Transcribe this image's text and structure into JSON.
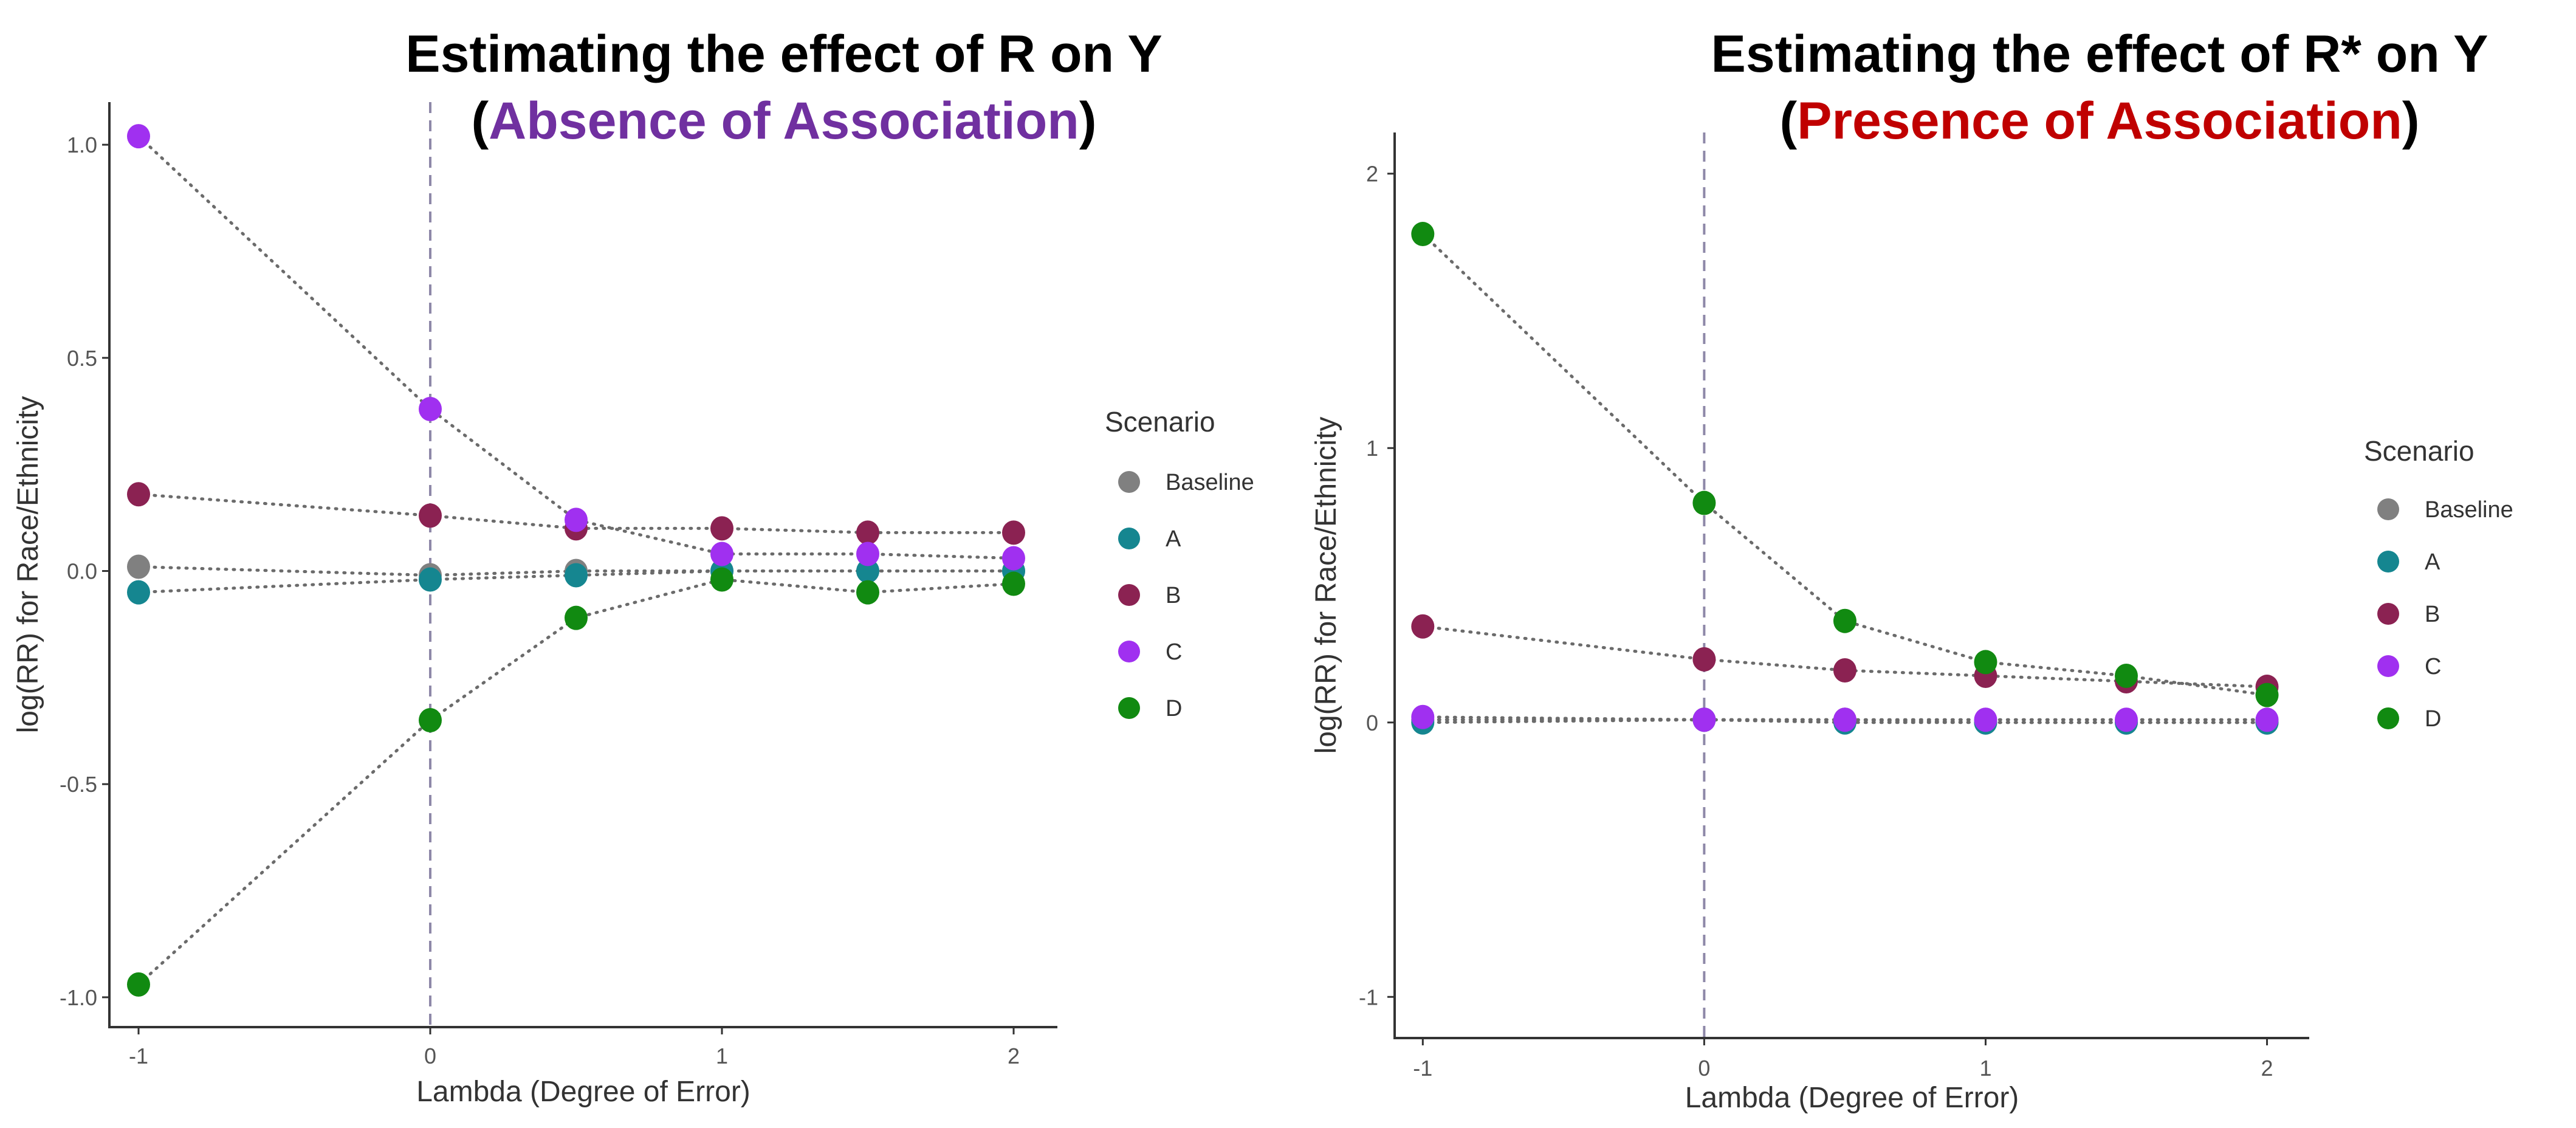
{
  "chart_data": [
    {
      "type": "scatter",
      "title_line1": "Estimating the effect of R on Y",
      "title_line2": {
        "open": "(",
        "highlight": "Absence of Association",
        "close": ")",
        "highlight_color": "#7030A0"
      },
      "xlabel": "Lambda (Degree of Error)",
      "ylabel": "log(RR) for Race/Ethnicity",
      "xlim": [
        -1.1,
        2.15
      ],
      "ylim": [
        -1.07,
        1.1
      ],
      "x_ticks": [
        -1,
        0,
        1,
        2
      ],
      "x_tick_labels": [
        "-1",
        "0",
        "1",
        "2"
      ],
      "y_ticks": [
        -1.0,
        -0.5,
        0.0,
        0.5,
        1.0
      ],
      "y_tick_labels": [
        "-1.0",
        "-0.5",
        "0.0",
        "0.5",
        "1.0"
      ],
      "reference_line_x": 0,
      "x": [
        -1,
        0,
        0.5,
        1,
        1.5,
        2
      ],
      "legend_title": "Scenario",
      "legend_position": "right",
      "grid": false,
      "series": [
        {
          "name": "Baseline",
          "color": "#808080",
          "values": [
            0.01,
            -0.01,
            0.0,
            0.0,
            0.0,
            0.0
          ]
        },
        {
          "name": "A",
          "color": "#158690",
          "values": [
            -0.05,
            -0.02,
            -0.01,
            0.0,
            0.0,
            0.0
          ]
        },
        {
          "name": "B",
          "color": "#8B2252",
          "values": [
            0.18,
            0.13,
            0.1,
            0.1,
            0.09,
            0.09
          ]
        },
        {
          "name": "C",
          "color": "#A030F0",
          "values": [
            1.02,
            0.38,
            0.12,
            0.04,
            0.04,
            0.03
          ]
        },
        {
          "name": "D",
          "color": "#118A11",
          "values": [
            -0.97,
            -0.35,
            -0.11,
            -0.02,
            -0.05,
            -0.03
          ]
        }
      ]
    },
    {
      "type": "scatter",
      "title_line1": "Estimating the effect of R* on Y",
      "title_line2": {
        "open": "(",
        "highlight": "Presence of Association",
        "close": ")",
        "highlight_color": "#C00000"
      },
      "xlabel": "Lambda (Degree of Error)",
      "ylabel": "log(RR) for Race/Ethnicity",
      "xlim": [
        -1.1,
        2.15
      ],
      "ylim": [
        -1.15,
        2.15
      ],
      "x_ticks": [
        -1,
        0,
        1,
        2
      ],
      "x_tick_labels": [
        "-1",
        "0",
        "1",
        "2"
      ],
      "y_ticks": [
        -1,
        0,
        1,
        2
      ],
      "y_tick_labels": [
        "-1",
        "0",
        "1",
        "2"
      ],
      "reference_line_x": 0,
      "x": [
        -1,
        0,
        0.5,
        1,
        1.5,
        2
      ],
      "legend_title": "Scenario",
      "legend_position": "right",
      "grid": false,
      "series": [
        {
          "name": "Baseline",
          "color": "#808080",
          "values": [
            0.01,
            0.01,
            0.01,
            0.0,
            0.0,
            0.0
          ]
        },
        {
          "name": "A",
          "color": "#158690",
          "values": [
            0.0,
            0.01,
            0.0,
            0.0,
            0.0,
            0.0
          ]
        },
        {
          "name": "B",
          "color": "#8B2252",
          "values": [
            0.35,
            0.23,
            0.19,
            0.17,
            0.15,
            0.13
          ]
        },
        {
          "name": "C",
          "color": "#A030F0",
          "values": [
            0.02,
            0.01,
            0.01,
            0.01,
            0.01,
            0.01
          ]
        },
        {
          "name": "D",
          "color": "#118A11",
          "values": [
            1.78,
            0.8,
            0.37,
            0.22,
            0.17,
            0.1
          ]
        }
      ]
    }
  ]
}
